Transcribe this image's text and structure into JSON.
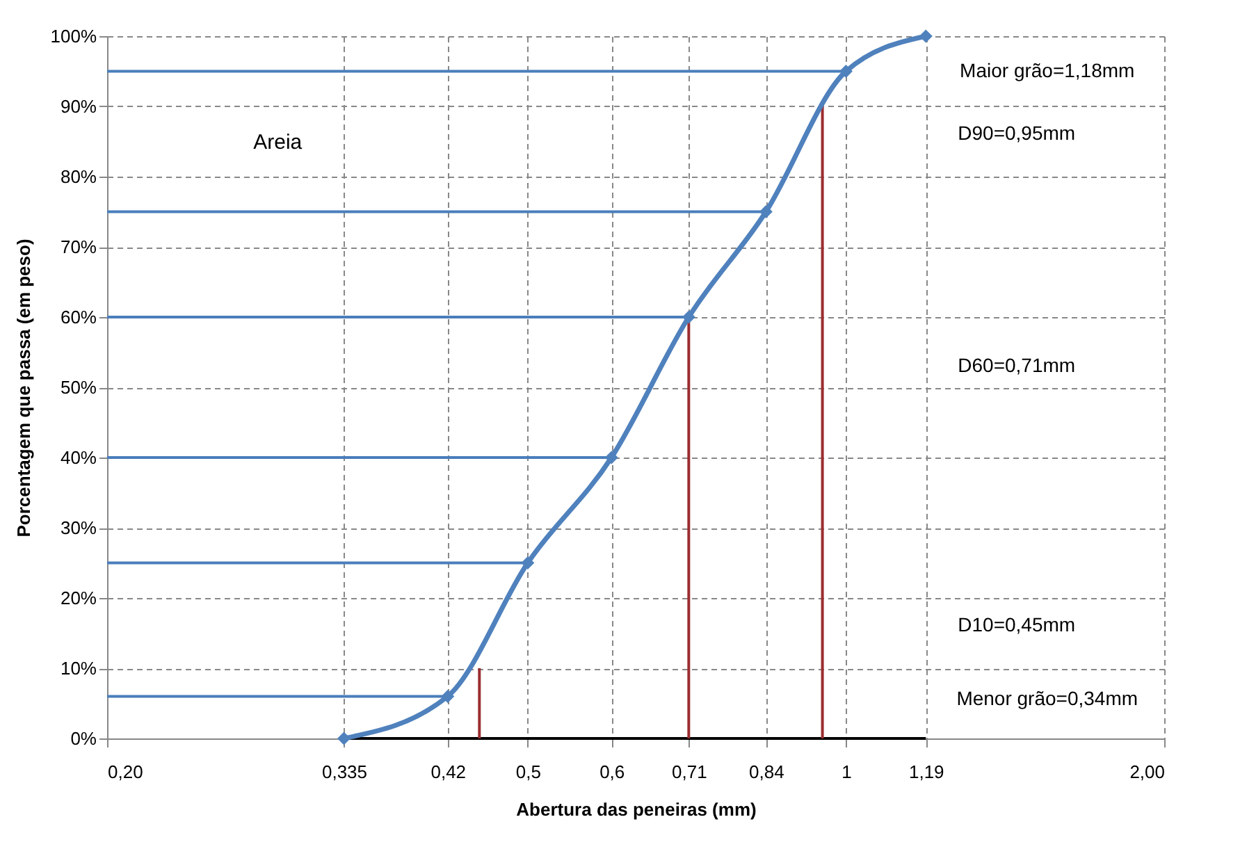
{
  "chart_data": {
    "type": "line",
    "xlabel": "Abertura das peneiras (mm)",
    "ylabel": "Porcentagem que passa (em peso)",
    "log": "x",
    "xlim": [
      0.2,
      2.0
    ],
    "ylim": [
      0,
      100
    ],
    "xticks": [
      {
        "value": 0.2,
        "label": "0,20"
      },
      {
        "value": 0.335,
        "label": "0,335"
      },
      {
        "value": 0.42,
        "label": "0,42"
      },
      {
        "value": 0.5,
        "label": "0,5"
      },
      {
        "value": 0.6,
        "label": "0,6"
      },
      {
        "value": 0.71,
        "label": "0,71"
      },
      {
        "value": 0.84,
        "label": "0,84"
      },
      {
        "value": 1,
        "label": "1"
      },
      {
        "value": 1.19,
        "label": "1,19"
      },
      {
        "value": 2.0,
        "label": "2,00"
      }
    ],
    "yticks": [
      {
        "value": 0,
        "label": "0%"
      },
      {
        "value": 10,
        "label": "10%"
      },
      {
        "value": 20,
        "label": "20%"
      },
      {
        "value": 30,
        "label": "30%"
      },
      {
        "value": 40,
        "label": "40%"
      },
      {
        "value": 50,
        "label": "50%"
      },
      {
        "value": 60,
        "label": "60%"
      },
      {
        "value": 70,
        "label": "70%"
      },
      {
        "value": 80,
        "label": "80%"
      },
      {
        "value": 90,
        "label": "90%"
      },
      {
        "value": 100,
        "label": "100%"
      }
    ],
    "grid": true,
    "line_style": "solid",
    "series": [
      {
        "color": "#4f81bd",
        "marker": "diamond",
        "x": [
          0.335,
          0.42,
          0.5,
          0.6,
          0.71,
          0.84,
          1,
          1.19
        ],
        "values": [
          0,
          6,
          25,
          40,
          60,
          75,
          95,
          100
        ]
      },
      {
        "color": "#4a7ebb",
        "marker": "none",
        "x": [
          0.2,
          0.42
        ],
        "values": [
          6,
          6
        ]
      },
      {
        "color": "#4a7ebb",
        "marker": "none",
        "x": [
          0.2,
          0.5
        ],
        "values": [
          25,
          25
        ]
      },
      {
        "color": "#4a7ebb",
        "marker": "none",
        "x": [
          0.2,
          0.6
        ],
        "values": [
          40,
          40
        ]
      },
      {
        "color": "#4a7ebb",
        "marker": "none",
        "x": [
          0.2,
          0.71
        ],
        "values": [
          60,
          60
        ]
      },
      {
        "color": "#4a7ebb",
        "marker": "none",
        "x": [
          0.2,
          0.84
        ],
        "values": [
          75,
          75
        ]
      },
      {
        "color": "#4a7ebb",
        "marker": "none",
        "x": [
          0.2,
          1
        ],
        "values": [
          95,
          95
        ]
      },
      {
        "color": "#000000",
        "marker": "none",
        "x": [
          0.335,
          1.19
        ],
        "values": [
          0,
          0
        ]
      },
      {
        "color": "#9b2d30",
        "marker": "none",
        "x": [
          0.45,
          0.45
        ],
        "values": [
          10,
          0
        ]
      },
      {
        "color": "#9b2d30",
        "marker": "none",
        "x": [
          0.71,
          0.71
        ],
        "values": [
          60,
          0
        ]
      },
      {
        "color": "#9b2d30",
        "marker": "none",
        "x": [
          0.95,
          0.95
        ],
        "values": [
          90,
          0
        ]
      }
    ],
    "annotations": [
      "Areia",
      "Maior grão=1,18mm",
      "D90=0,95mm",
      "D60=0,71mm",
      "D10=0,45mm",
      "Menor grão=0,34mm"
    ]
  }
}
